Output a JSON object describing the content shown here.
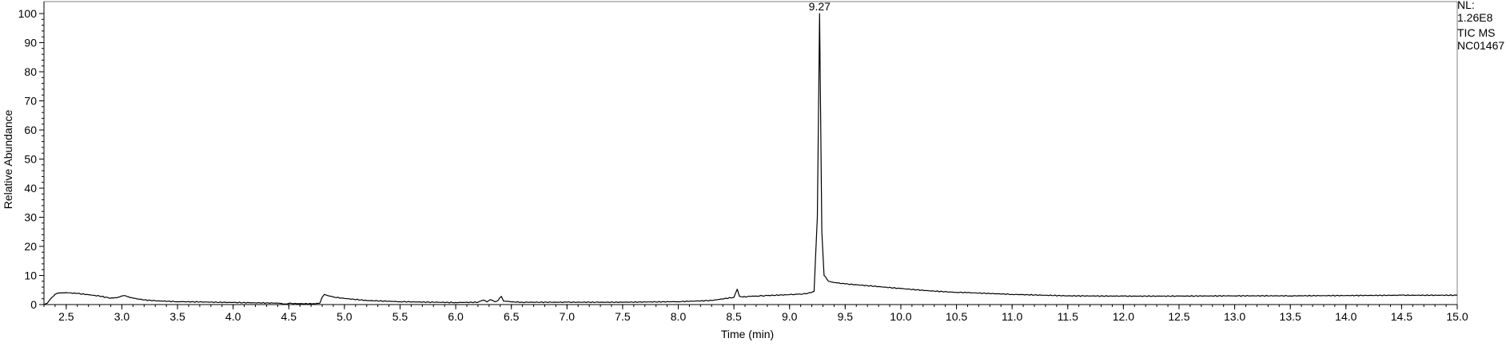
{
  "chart_data": {
    "type": "line",
    "xlabel": "Time (min)",
    "ylabel": "Relative Abundance",
    "xlim": [
      2.3,
      15.0
    ],
    "ylim": [
      0,
      100
    ],
    "x_ticks": [
      2.5,
      3.0,
      3.5,
      4.0,
      4.5,
      5.0,
      5.5,
      6.0,
      6.5,
      7.0,
      7.5,
      8.0,
      8.5,
      9.0,
      9.5,
      10.0,
      10.5,
      11.0,
      11.5,
      12.0,
      12.5,
      13.0,
      13.5,
      14.0,
      14.5,
      15.0
    ],
    "x_tick_labels": [
      "2.5",
      "3.0",
      "3.5",
      "4.0",
      "4.5",
      "5.0",
      "5.5",
      "6.0",
      "6.5",
      "7.0",
      "7.5",
      "8.0",
      "8.5",
      "9.0",
      "9.5",
      "10.0",
      "10.5",
      "11.0",
      "11.5",
      "12.0",
      "12.5",
      "13.0",
      "13.5",
      "14.0",
      "14.5",
      "15.0"
    ],
    "y_ticks": [
      0,
      10,
      20,
      30,
      40,
      50,
      60,
      70,
      80,
      90,
      100
    ],
    "y_tick_labels": [
      "0",
      "10",
      "20",
      "30",
      "40",
      "50",
      "60",
      "70",
      "80",
      "90",
      "100"
    ],
    "peak_annotations": [
      {
        "x": 9.27,
        "y": 100,
        "label": "9.27"
      }
    ],
    "info_lines": [
      "NL:",
      "1.26E8",
      "TIC  MS",
      "NC01467"
    ],
    "series": [
      {
        "x": [
          2.3,
          2.33,
          2.36,
          2.4,
          2.45,
          2.5,
          2.6,
          2.7,
          2.8,
          2.9,
          2.98,
          3.02,
          3.06,
          3.1,
          3.2,
          3.3,
          3.5,
          3.7,
          4.0,
          4.2,
          4.4,
          4.45,
          4.5,
          4.6,
          4.7,
          4.78,
          4.8,
          4.82,
          4.85,
          4.9,
          5.0,
          5.2,
          5.5,
          5.8,
          6.0,
          6.2,
          6.25,
          6.28,
          6.31,
          6.35,
          6.38,
          6.41,
          6.43,
          6.46,
          6.5,
          6.6,
          7.0,
          7.5,
          8.0,
          8.3,
          8.5,
          8.53,
          8.55,
          8.58,
          8.65,
          8.8,
          9.0,
          9.15,
          9.22,
          9.25,
          9.27,
          9.29,
          9.31,
          9.35,
          9.4,
          9.5,
          9.7,
          10.0,
          10.3,
          10.5,
          10.6,
          11.0,
          11.5,
          12.0,
          12.5,
          13.0,
          13.5,
          14.0,
          14.5,
          15.0
        ],
        "y": [
          0,
          0.5,
          2,
          3.5,
          4,
          4.1,
          3.8,
          3.4,
          2.9,
          2.2,
          2.6,
          3.1,
          2.7,
          2.2,
          1.6,
          1.3,
          1.0,
          0.9,
          0.7,
          0.6,
          0.5,
          0.2,
          0.4,
          0.3,
          0.3,
          0.5,
          2.5,
          3.5,
          3.1,
          2.6,
          2.1,
          1.4,
          1.0,
          0.8,
          0.7,
          0.8,
          1.5,
          0.9,
          1.7,
          1.0,
          1.4,
          2.8,
          1.2,
          1.1,
          0.9,
          0.8,
          0.8,
          0.8,
          1.0,
          1.4,
          2.5,
          5.3,
          2.8,
          2.6,
          2.8,
          3.1,
          3.4,
          3.7,
          4.5,
          30,
          100,
          25,
          10,
          8,
          7.6,
          7.1,
          6.5,
          5.5,
          4.6,
          4.2,
          4.1,
          3.5,
          3.0,
          2.9,
          2.9,
          3.0,
          3.0,
          3.1,
          3.2,
          3.2
        ]
      }
    ]
  }
}
